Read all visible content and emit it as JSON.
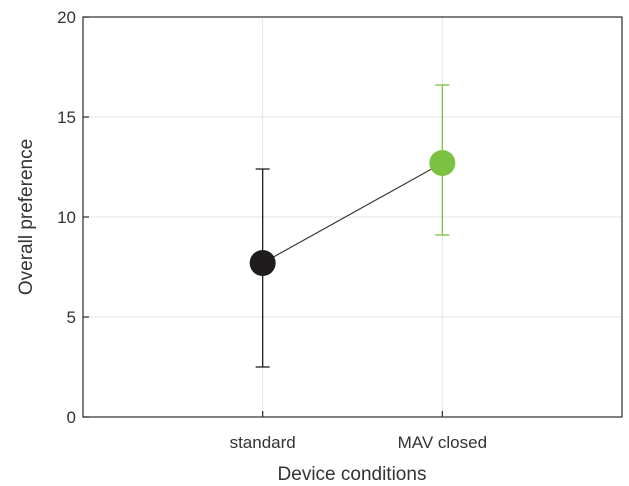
{
  "chart_data": {
    "type": "scatter",
    "categories": [
      "standard",
      "MAV closed"
    ],
    "points": [
      {
        "category": "standard",
        "y": 7.7,
        "err_low": 2.5,
        "err_high": 12.4,
        "color": "#1f1c1d"
      },
      {
        "category": "MAV closed",
        "y": 12.7,
        "err_low": 9.1,
        "err_high": 16.6,
        "color": "#7cc242"
      }
    ],
    "connecting_line": true,
    "xlabel": "Device conditions",
    "ylabel": "Overall preference",
    "ylim": [
      0,
      20
    ],
    "yticks": [
      "0",
      "5",
      "10",
      "15",
      "20"
    ],
    "grid": true
  }
}
